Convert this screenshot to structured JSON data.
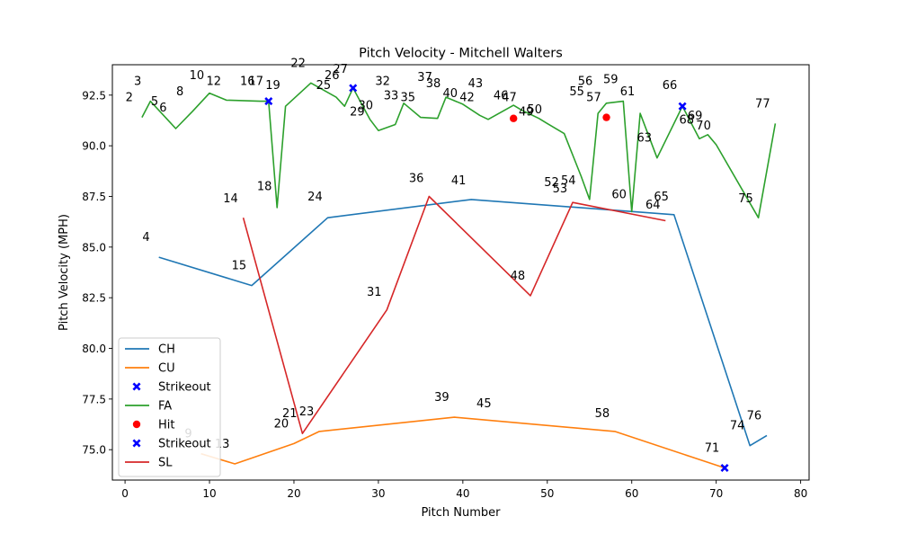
{
  "chart_data": {
    "type": "line",
    "title": "Pitch Velocity - Mitchell Walters",
    "xlabel": "Pitch Number",
    "ylabel": "Pitch Velocity (MPH)",
    "xlim": [
      -1.5,
      81
    ],
    "ylim": [
      73.5,
      94
    ],
    "xticks": [
      0,
      10,
      20,
      30,
      40,
      50,
      60,
      70,
      80
    ],
    "yticks": [
      75.0,
      77.5,
      80.0,
      82.5,
      85.0,
      87.5,
      90.0,
      92.5
    ],
    "ytick_labels": [
      "75.0",
      "77.5",
      "80.0",
      "82.5",
      "85.0",
      "87.5",
      "90.0",
      "92.5"
    ],
    "grid": false,
    "legend_position": "lower-left",
    "legend": [
      {
        "label": "CH",
        "kind": "line",
        "color": "#1f77b4"
      },
      {
        "label": "CU",
        "kind": "line",
        "color": "#ff7f0e"
      },
      {
        "label": "Strikeout",
        "kind": "marker-x",
        "color": "#0000ff"
      },
      {
        "label": "FA",
        "kind": "line",
        "color": "#2ca02c"
      },
      {
        "label": "Hit",
        "kind": "marker-dot",
        "color": "#ff0000"
      },
      {
        "label": "Strikeout",
        "kind": "marker-x",
        "color": "#0000ff"
      },
      {
        "label": "SL",
        "kind": "line",
        "color": "#d62728"
      }
    ],
    "series": [
      {
        "name": "CH",
        "color": "#1f77b4",
        "x": [
          4,
          15,
          24,
          41,
          65,
          74,
          76
        ],
        "y": [
          84.5,
          83.1,
          86.45,
          87.35,
          86.6,
          75.2,
          75.7
        ]
      },
      {
        "name": "CU",
        "color": "#ff7f0e",
        "x": [
          9,
          13,
          20,
          23,
          39,
          58,
          71
        ],
        "y": [
          74.8,
          74.3,
          75.3,
          75.9,
          76.6,
          75.9,
          74.1
        ]
      },
      {
        "name": "FA",
        "color": "#2ca02c",
        "x": [
          2,
          3,
          5,
          6,
          8,
          10,
          12,
          16,
          17,
          18,
          19,
          22,
          25,
          26,
          27,
          29,
          30,
          32,
          33,
          35,
          37,
          38,
          40,
          42,
          43,
          46,
          47,
          49,
          50,
          52,
          54,
          55,
          56,
          57,
          59,
          60,
          61,
          63,
          66,
          68,
          69,
          70,
          75,
          77
        ],
        "y": [
          91.4,
          92.2,
          91.3,
          90.85,
          91.7,
          92.6,
          92.25,
          92.2,
          92.2,
          86.95,
          91.95,
          93.1,
          92.4,
          91.95,
          92.85,
          91.3,
          90.75,
          91.05,
          92.1,
          91.4,
          91.35,
          92.4,
          92.05,
          91.5,
          91.3,
          92.0,
          91.75,
          91.35,
          91.1,
          90.6,
          88.5,
          87.35,
          91.6,
          92.1,
          92.2,
          86.75,
          91.6,
          89.4,
          91.95,
          90.35,
          90.55,
          90.05,
          86.45,
          91.1
        ]
      },
      {
        "name": "SL",
        "color": "#d62728",
        "x": [
          14,
          21,
          31,
          36,
          48,
          53,
          64
        ],
        "y": [
          86.45,
          75.8,
          81.9,
          87.5,
          82.6,
          87.2,
          86.3
        ]
      }
    ],
    "markers": [
      {
        "label": "Strikeout",
        "kind": "x",
        "color": "#0000ff",
        "x": 17,
        "y": 92.2
      },
      {
        "label": "Strikeout",
        "kind": "x",
        "color": "#0000ff",
        "x": 27,
        "y": 92.85
      },
      {
        "label": "Strikeout",
        "kind": "x",
        "color": "#0000ff",
        "x": 66,
        "y": 91.95
      },
      {
        "label": "Strikeout",
        "kind": "x",
        "color": "#0000ff",
        "x": 71,
        "y": 74.1
      },
      {
        "label": "Hit",
        "kind": "dot",
        "color": "#ff0000",
        "x": 46,
        "y": 91.35
      },
      {
        "label": "Hit",
        "kind": "dot",
        "color": "#ff0000",
        "x": 57,
        "y": 91.4
      }
    ],
    "annotations": [
      {
        "text": "2",
        "x": 0.5,
        "y": 92.2
      },
      {
        "text": "3",
        "x": 1.5,
        "y": 93.0
      },
      {
        "text": "4",
        "x": 2.5,
        "y": 85.3
      },
      {
        "text": "5",
        "x": 3.5,
        "y": 92.0
      },
      {
        "text": "6",
        "x": 4.5,
        "y": 91.7
      },
      {
        "text": "8",
        "x": 6.5,
        "y": 92.5
      },
      {
        "text": "9",
        "x": 7.5,
        "y": 75.6
      },
      {
        "text": "10",
        "x": 8.5,
        "y": 93.3
      },
      {
        "text": "12",
        "x": 10.5,
        "y": 93.0
      },
      {
        "text": "13",
        "x": 11.5,
        "y": 75.1
      },
      {
        "text": "14",
        "x": 12.5,
        "y": 87.2
      },
      {
        "text": "15",
        "x": 13.5,
        "y": 83.9
      },
      {
        "text": "16",
        "x": 14.5,
        "y": 93.0
      },
      {
        "text": "17",
        "x": 15.5,
        "y": 93.0
      },
      {
        "text": "18",
        "x": 16.5,
        "y": 87.8
      },
      {
        "text": "19",
        "x": 17.5,
        "y": 92.8
      },
      {
        "text": "20",
        "x": 18.5,
        "y": 76.1
      },
      {
        "text": "21",
        "x": 19.5,
        "y": 76.6
      },
      {
        "text": "22",
        "x": 20.5,
        "y": 93.9
      },
      {
        "text": "23",
        "x": 21.5,
        "y": 76.7
      },
      {
        "text": "24",
        "x": 22.5,
        "y": 87.3
      },
      {
        "text": "25",
        "x": 23.5,
        "y": 92.8
      },
      {
        "text": "26",
        "x": 24.5,
        "y": 93.3
      },
      {
        "text": "27",
        "x": 25.5,
        "y": 93.6
      },
      {
        "text": "29",
        "x": 27.5,
        "y": 91.5
      },
      {
        "text": "30",
        "x": 28.5,
        "y": 91.8
      },
      {
        "text": "31",
        "x": 29.5,
        "y": 82.6
      },
      {
        "text": "32",
        "x": 30.5,
        "y": 93.0
      },
      {
        "text": "33",
        "x": 31.5,
        "y": 92.3
      },
      {
        "text": "35",
        "x": 33.5,
        "y": 92.2
      },
      {
        "text": "36",
        "x": 34.5,
        "y": 88.2
      },
      {
        "text": "37",
        "x": 35.5,
        "y": 93.2
      },
      {
        "text": "38",
        "x": 36.5,
        "y": 92.9
      },
      {
        "text": "39",
        "x": 37.5,
        "y": 77.4
      },
      {
        "text": "40",
        "x": 38.5,
        "y": 92.4
      },
      {
        "text": "41",
        "x": 39.5,
        "y": 88.1
      },
      {
        "text": "42",
        "x": 40.5,
        "y": 92.2
      },
      {
        "text": "43",
        "x": 41.5,
        "y": 92.9
      },
      {
        "text": "45",
        "x": 42.5,
        "y": 77.1
      },
      {
        "text": "46",
        "x": 44.5,
        "y": 92.3
      },
      {
        "text": "47",
        "x": 45.5,
        "y": 92.2
      },
      {
        "text": "49",
        "x": 47.5,
        "y": 91.5
      },
      {
        "text": "48",
        "x": 46.5,
        "y": 83.4
      },
      {
        "text": "50",
        "x": 48.5,
        "y": 91.6
      },
      {
        "text": "52",
        "x": 50.5,
        "y": 88.0
      },
      {
        "text": "53",
        "x": 51.5,
        "y": 87.7
      },
      {
        "text": "54",
        "x": 52.5,
        "y": 88.1
      },
      {
        "text": "55",
        "x": 53.5,
        "y": 92.5
      },
      {
        "text": "56",
        "x": 54.5,
        "y": 93.0
      },
      {
        "text": "57",
        "x": 55.5,
        "y": 92.2
      },
      {
        "text": "58",
        "x": 56.5,
        "y": 76.6
      },
      {
        "text": "59",
        "x": 57.5,
        "y": 93.1
      },
      {
        "text": "60",
        "x": 58.5,
        "y": 87.4
      },
      {
        "text": "61",
        "x": 59.5,
        "y": 92.5
      },
      {
        "text": "63",
        "x": 61.5,
        "y": 90.2
      },
      {
        "text": "64",
        "x": 62.5,
        "y": 86.9
      },
      {
        "text": "65",
        "x": 63.5,
        "y": 87.3
      },
      {
        "text": "66",
        "x": 64.5,
        "y": 92.8
      },
      {
        "text": "68",
        "x": 66.5,
        "y": 91.1
      },
      {
        "text": "69",
        "x": 67.5,
        "y": 91.3
      },
      {
        "text": "70",
        "x": 68.5,
        "y": 90.8
      },
      {
        "text": "71",
        "x": 69.5,
        "y": 74.9
      },
      {
        "text": "74",
        "x": 72.5,
        "y": 76.0
      },
      {
        "text": "75",
        "x": 73.5,
        "y": 87.2
      },
      {
        "text": "76",
        "x": 74.5,
        "y": 76.5
      },
      {
        "text": "77",
        "x": 75.5,
        "y": 91.9
      }
    ]
  }
}
